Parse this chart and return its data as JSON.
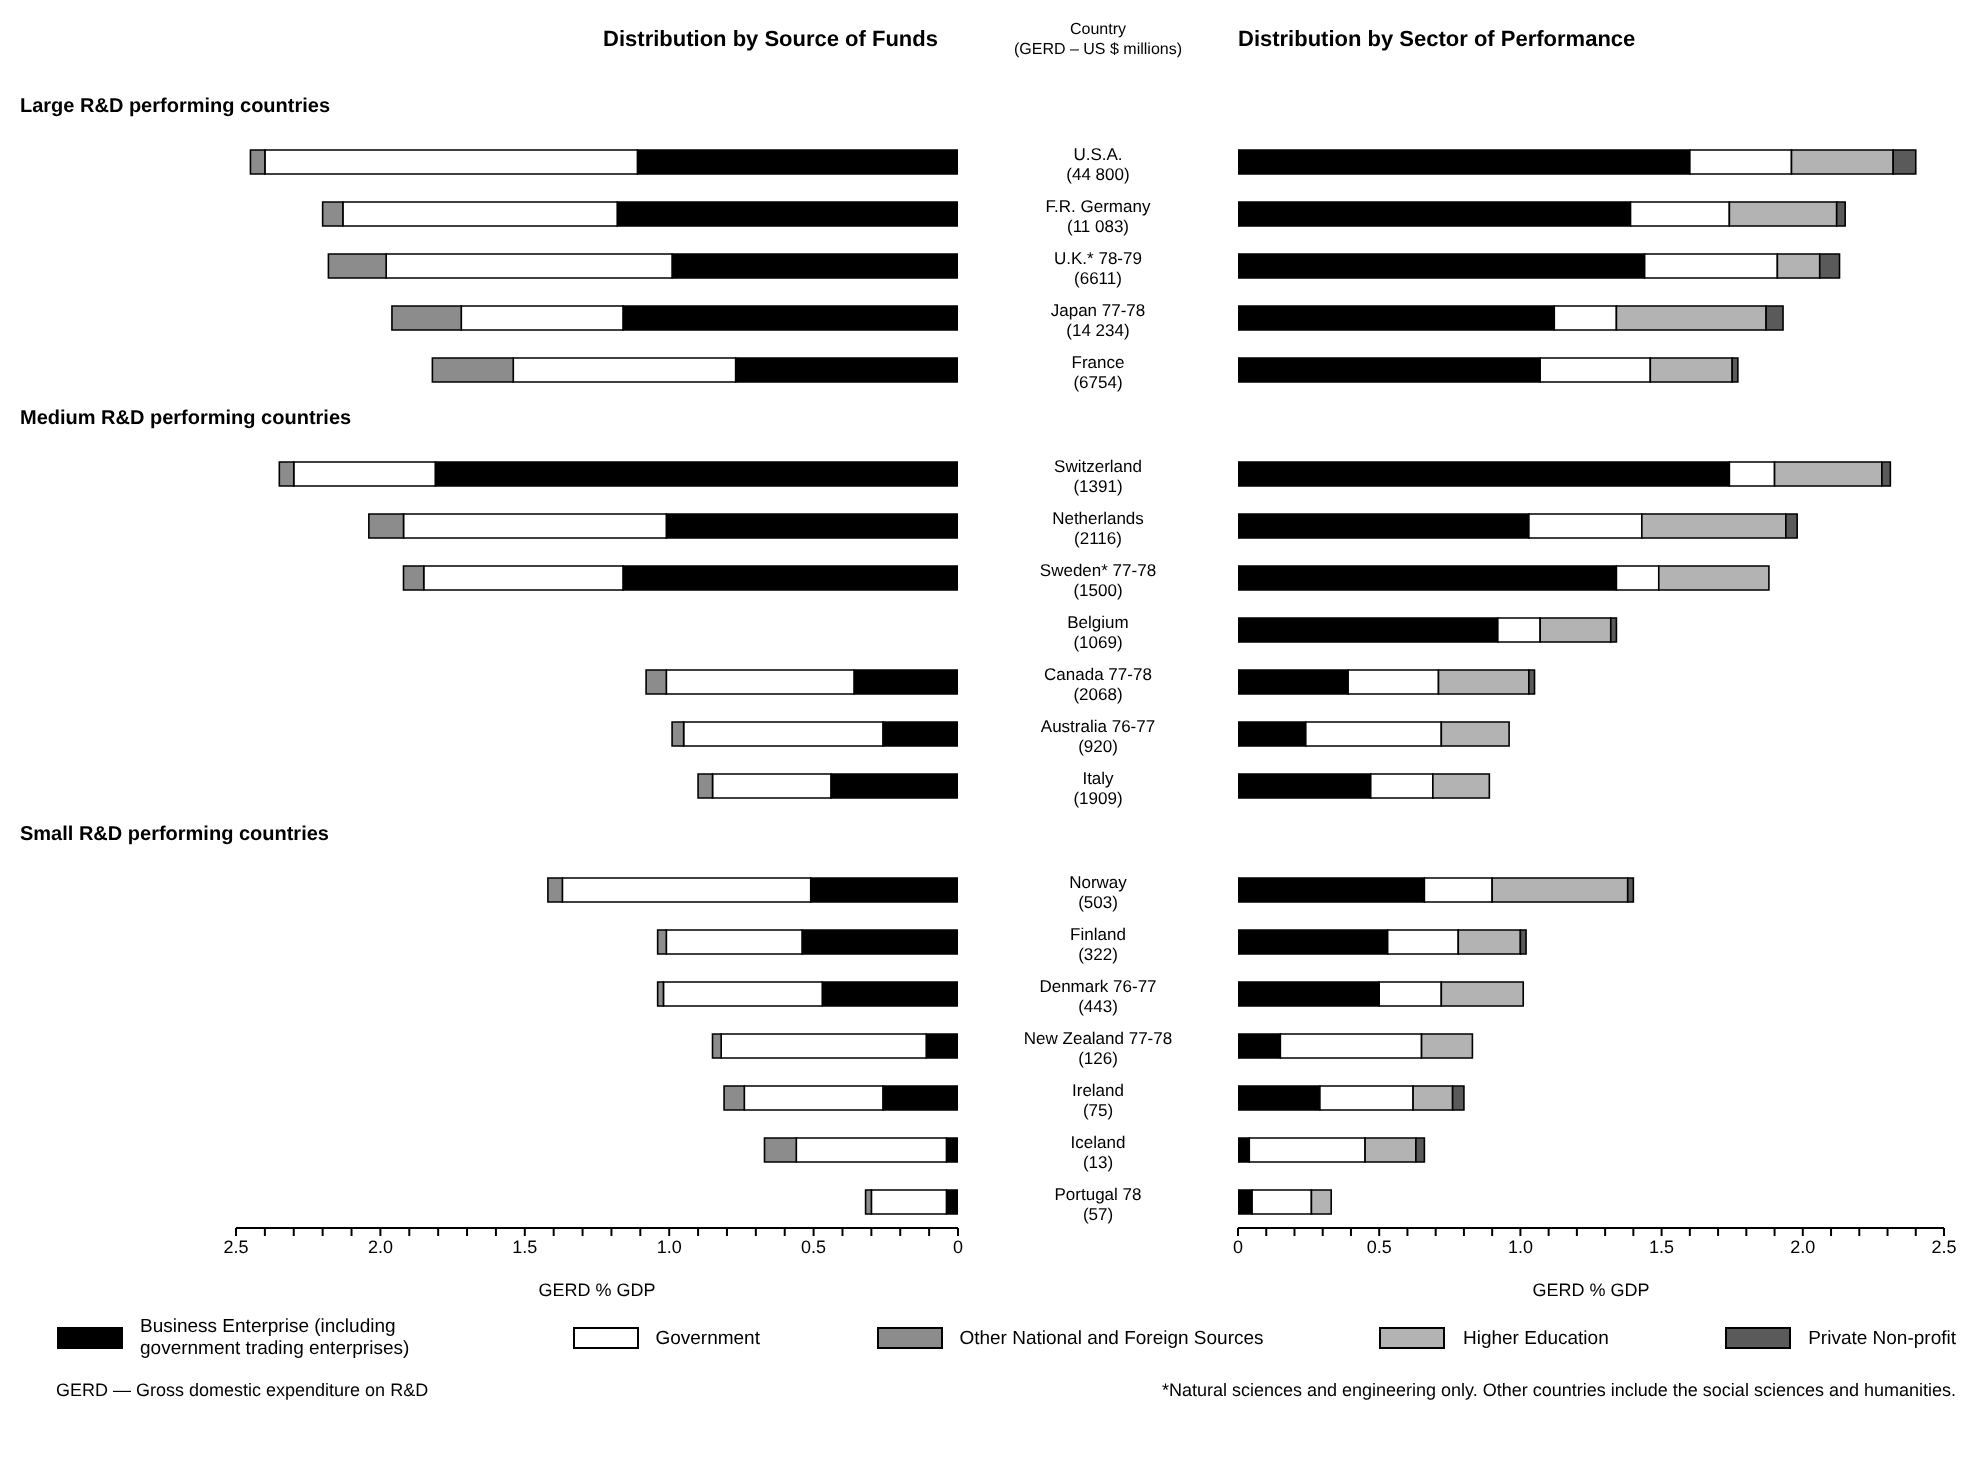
{
  "chart_data": [
    {
      "type": "bar",
      "orientation": "horizontal",
      "stacked": true,
      "title": "Distribution by Source of Funds",
      "xlabel": "GERD % GDP",
      "legend": "bottom",
      "tick_labels": "x",
      "categories": [
        null,
        "U.S.A. (44 800)",
        "F.R. Germany (11 083)",
        "U.K.* 78-79 (6611)",
        "Japan 77-78 (14 234)",
        "France (6754)",
        null,
        "Switzerland (1391)",
        "Netherlands (2116)",
        "Sweden* 77-78 (1500)",
        "Belgium (1069)",
        "Canada 77-78 (2068)",
        "Australia 76-77 (920)",
        "Italy (1909)",
        null,
        "Norway (503)",
        "Finland (322)",
        "Denmark 76-77 (443)",
        "New Zealand 77-78 (126)",
        "Ireland (75)",
        "Iceland (13)",
        "Portugal 78 (57)"
      ],
      "xlim": [
        2.5,
        0
      ],
      "xticks": [
        {
          "value": 2.5,
          "label": "2.5"
        },
        {
          "value": 2.4,
          "label": null
        },
        {
          "value": 2.3,
          "label": null
        },
        {
          "value": 2.2,
          "label": null
        },
        {
          "value": 2.1,
          "label": null
        },
        {
          "value": 2,
          "label": "2.0"
        },
        {
          "value": 1.9,
          "label": null
        },
        {
          "value": 1.8,
          "label": null
        },
        {
          "value": 1.7,
          "label": null
        },
        {
          "value": 1.6,
          "label": null
        },
        {
          "value": 1.5,
          "label": "1.5"
        },
        {
          "value": 1.4,
          "label": null
        },
        {
          "value": 1.3,
          "label": null
        },
        {
          "value": 1.2,
          "label": null
        },
        {
          "value": 1.1,
          "label": null
        },
        {
          "value": 1,
          "label": "1.0"
        },
        {
          "value": 0.9,
          "label": null
        },
        {
          "value": 0.8,
          "label": null
        },
        {
          "value": 0.7,
          "label": null
        },
        {
          "value": 0.6,
          "label": null
        },
        {
          "value": 0.5,
          "label": "0.5"
        },
        {
          "value": 0.4,
          "label": null
        },
        {
          "value": 0.3,
          "label": null
        },
        {
          "value": 0.2,
          "label": null
        },
        {
          "value": 0.1,
          "label": null
        },
        {
          "value": 0,
          "label": "0"
        }
      ],
      "series": [
        {
          "name": "Business Enterprise (including government trading enterprises)",
          "color": "#000000",
          "values": [
            null,
            1.11,
            1.18,
            0.99,
            1.16,
            0.77,
            null,
            1.81,
            1.01,
            1.16,
            null,
            0.36,
            0.26,
            0.44,
            null,
            0.51,
            0.54,
            0.47,
            0.11,
            0.26,
            0.04,
            0.04
          ]
        },
        {
          "name": "Government",
          "color": "#ffffff",
          "values": [
            null,
            1.29,
            0.95,
            0.99,
            0.56,
            0.77,
            null,
            0.49,
            0.91,
            0.69,
            null,
            0.65,
            0.69,
            0.41,
            null,
            0.86,
            0.47,
            0.55,
            0.71,
            0.48,
            0.52,
            0.26
          ]
        },
        {
          "name": "Other National and Foreign Sources",
          "color": "#8c8c8c",
          "values": [
            null,
            0.05,
            0.07,
            0.2,
            0.24,
            0.28,
            null,
            0.05,
            0.12,
            0.07,
            null,
            0.07,
            0.04,
            0.05,
            null,
            0.05,
            0.03,
            0.02,
            0.03,
            0.07,
            0.11,
            0.02
          ]
        }
      ],
      "annotations": [
        "Large R&D performing countries",
        "Medium R&D performing countries",
        "Small R&D performing countries",
        "GERD — Gross domestic expenditure on R&D"
      ]
    },
    {
      "type": "bar",
      "orientation": "horizontal",
      "stacked": true,
      "title": "Distribution by Sector of Performance",
      "xlabel": "GERD % GDP",
      "ylabel": "Country (GERD – US $ millions)",
      "legend": "bottom",
      "categories": [
        null,
        "U.S.A. (44 800)",
        "F.R. Germany (11 083)",
        "U.K.* 78-79 (6611)",
        "Japan 77-78 (14 234)",
        "France (6754)",
        null,
        "Switzerland (1391)",
        "Netherlands (2116)",
        "Sweden* 77-78 (1500)",
        "Belgium (1069)",
        "Canada 77-78 (2068)",
        "Australia 76-77 (920)",
        "Italy (1909)",
        null,
        "Norway (503)",
        "Finland (322)",
        "Denmark 76-77 (443)",
        "New Zealand 77-78 (126)",
        "Ireland (75)",
        "Iceland (13)",
        "Portugal 78 (57)"
      ],
      "xlim": [
        0,
        2.5
      ],
      "xticks": [
        {
          "value": 0,
          "label": "0"
        },
        {
          "value": 0.1,
          "label": null
        },
        {
          "value": 0.2,
          "label": null
        },
        {
          "value": 0.3,
          "label": null
        },
        {
          "value": 0.4,
          "label": null
        },
        {
          "value": 0.5,
          "label": "0.5"
        },
        {
          "value": 0.6,
          "label": null
        },
        {
          "value": 0.7,
          "label": null
        },
        {
          "value": 0.8,
          "label": null
        },
        {
          "value": 0.9,
          "label": null
        },
        {
          "value": 1,
          "label": "1.0"
        },
        {
          "value": 1.1,
          "label": null
        },
        {
          "value": 1.2,
          "label": null
        },
        {
          "value": 1.3,
          "label": null
        },
        {
          "value": 1.4,
          "label": null
        },
        {
          "value": 1.5,
          "label": "1.5"
        },
        {
          "value": 1.6,
          "label": null
        },
        {
          "value": 1.7,
          "label": null
        },
        {
          "value": 1.8,
          "label": null
        },
        {
          "value": 1.9,
          "label": null
        },
        {
          "value": 2,
          "label": "2.0"
        },
        {
          "value": 2.1,
          "label": null
        },
        {
          "value": 2.2,
          "label": null
        },
        {
          "value": 2.3,
          "label": null
        },
        {
          "value": 2.4,
          "label": null
        },
        {
          "value": 2.5,
          "label": "2.5"
        }
      ],
      "series": [
        {
          "name": "Business Enterprise (including government trading enterprises)",
          "color": "#000000",
          "values": [
            null,
            1.6,
            1.39,
            1.44,
            1.12,
            1.07,
            null,
            1.74,
            1.03,
            1.34,
            0.92,
            0.39,
            0.24,
            0.47,
            null,
            0.66,
            0.53,
            0.5,
            0.15,
            0.29,
            0.04,
            0.05
          ]
        },
        {
          "name": "Government",
          "color": "#ffffff",
          "values": [
            null,
            0.36,
            0.35,
            0.47,
            0.22,
            0.39,
            null,
            0.16,
            0.4,
            0.15,
            0.15,
            0.32,
            0.48,
            0.22,
            null,
            0.24,
            0.25,
            0.22,
            0.5,
            0.33,
            0.41,
            0.21
          ]
        },
        {
          "name": "Higher Education",
          "color": "#b3b3b3",
          "values": [
            null,
            0.36,
            0.38,
            0.15,
            0.53,
            0.29,
            null,
            0.38,
            0.51,
            0.39,
            0.25,
            0.32,
            0.24,
            0.2,
            null,
            0.48,
            0.22,
            0.29,
            0.18,
            0.14,
            0.18,
            0.07
          ]
        },
        {
          "name": "Private Non-profit",
          "color": "#5a5a5a",
          "values": [
            null,
            0.08,
            0.03,
            0.07,
            0.06,
            0.02,
            null,
            0.03,
            0.04,
            null,
            0.02,
            0.02,
            null,
            null,
            null,
            0.02,
            0.02,
            null,
            null,
            0.04,
            0.03,
            null
          ]
        }
      ],
      "annotations": [
        "*Natural sciences and engineering only. Other countries include the social sciences and humanities."
      ]
    }
  ]
}
